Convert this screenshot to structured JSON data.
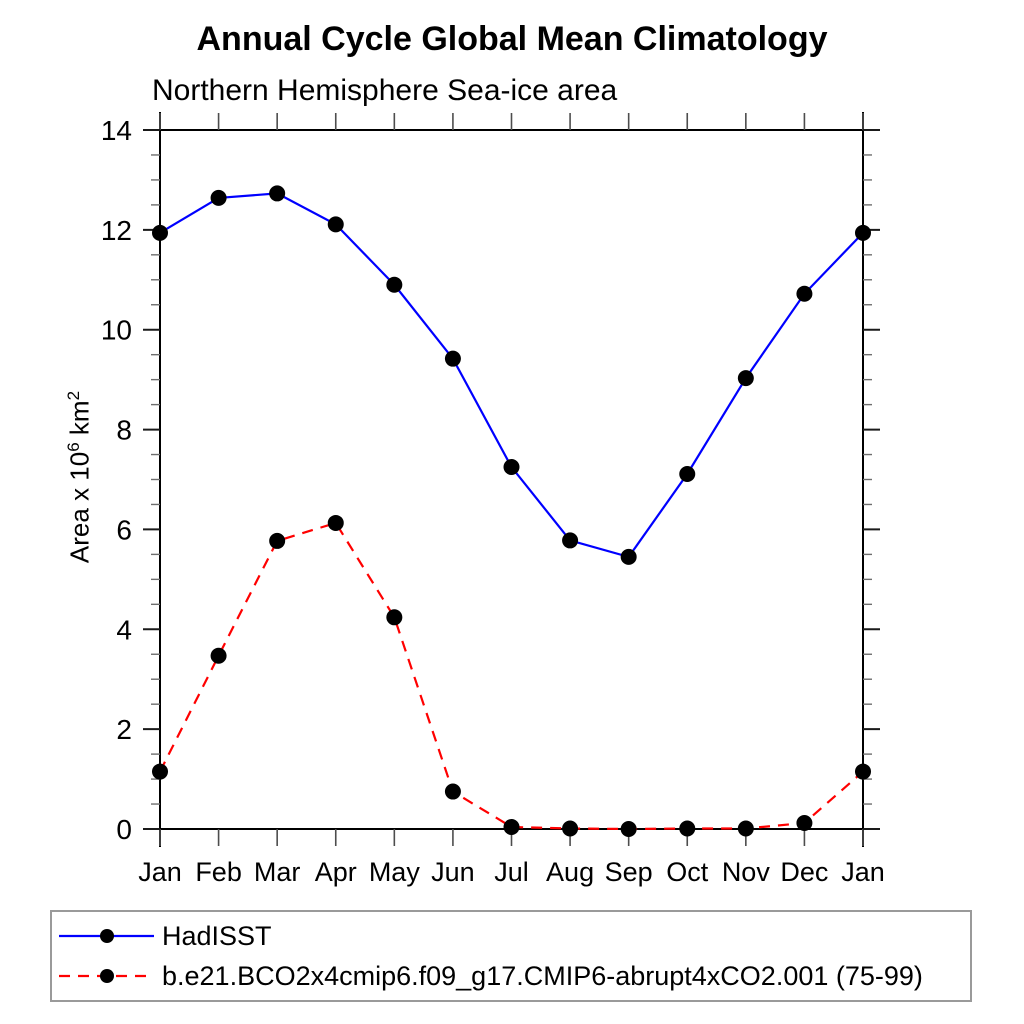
{
  "title": "Annual Cycle Global Mean Climatology",
  "subtitle": "Northern Hemisphere Sea-ice area",
  "ylabel_parts": {
    "base1": "Area x 10",
    "sup1": "6",
    "base2": " km",
    "sup2": "2"
  },
  "chart_data": {
    "type": "line",
    "title": "Annual Cycle Global Mean Climatology",
    "subtitle": "Northern Hemisphere Sea-ice area",
    "xlabel": "",
    "ylabel": "Area x 10^6 km^2",
    "categories": [
      "Jan",
      "Feb",
      "Mar",
      "Apr",
      "May",
      "Jun",
      "Jul",
      "Aug",
      "Sep",
      "Oct",
      "Nov",
      "Dec",
      "Jan"
    ],
    "series": [
      {
        "name": "HadISST",
        "color": "#0000ff",
        "line_style": "solid",
        "marker": "filled-circle",
        "marker_color": "#000000",
        "values": [
          11.94,
          12.64,
          12.73,
          12.11,
          10.9,
          9.42,
          7.25,
          5.78,
          5.45,
          7.11,
          9.03,
          10.72,
          11.94
        ]
      },
      {
        "name": "b.e21.BCO2x4cmip6.f09_g17.CMIP6-abrupt4xCO2.001 (75-99)",
        "color": "#ff0000",
        "line_style": "dashed",
        "marker": "filled-circle",
        "marker_color": "#000000",
        "values": [
          1.15,
          3.47,
          5.77,
          6.13,
          4.24,
          0.75,
          0.04,
          0.01,
          0.0,
          0.01,
          0.01,
          0.12,
          1.15
        ]
      }
    ],
    "ylim": [
      0,
      14
    ],
    "ytick_major_step": 2,
    "ytick_minor_step": 0.5,
    "grid": false,
    "legend_position": "bottom-box"
  }
}
